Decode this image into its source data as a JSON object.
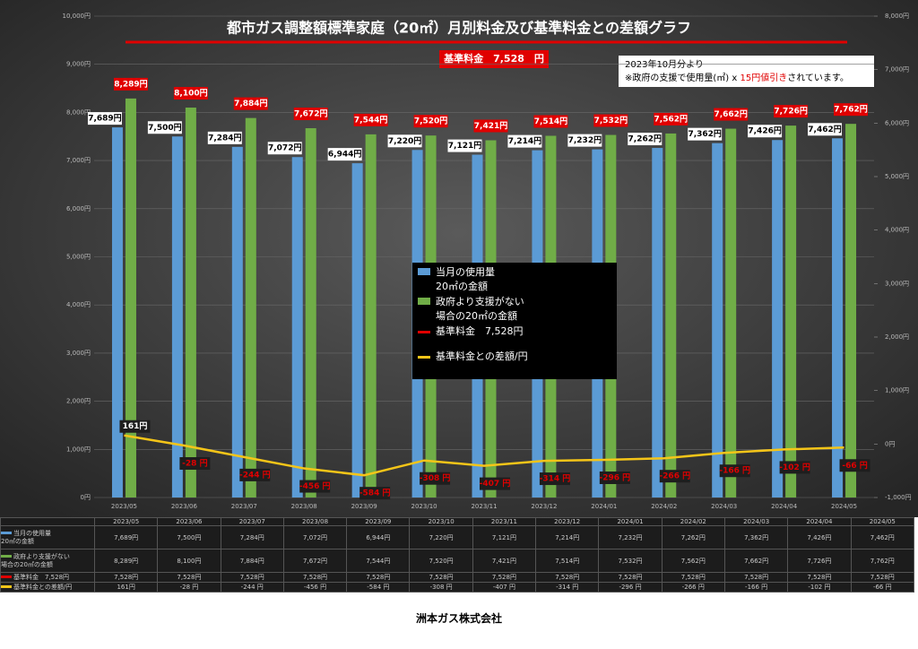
{
  "title": "都市ガス調整額標準家庭（20㎡）月別料金及び基準料金との差額グラフ",
  "badge": "基準料金　7,528　円",
  "note": {
    "line1": "2023年10月分より",
    "line2_a": "※政府の支援で使用量(㎡) x ",
    "line2_b": "15円値引き",
    "line2_c": "されています。"
  },
  "footer": "洲本ガス株式会社",
  "chart_data": {
    "type": "bar_line",
    "categories": [
      "2023/05",
      "2023/06",
      "2023/07",
      "2023/08",
      "2023/09",
      "2023/10",
      "2023/11",
      "2023/12",
      "2024/01",
      "2024/02",
      "2024/03",
      "2024/04",
      "2024/05"
    ],
    "ylim": [
      0,
      10000
    ],
    "yticks": [
      {
        "value": 0,
        "label": "0円"
      },
      {
        "value": 1000,
        "label": "1,000円"
      },
      {
        "value": 2000,
        "label": "2,000円"
      },
      {
        "value": 3000,
        "label": "3,000円"
      },
      {
        "value": 4000,
        "label": "4,000円"
      },
      {
        "value": 5000,
        "label": "5,000円"
      },
      {
        "value": 6000,
        "label": "6,000円"
      },
      {
        "value": 7000,
        "label": "7,000円"
      },
      {
        "value": 8000,
        "label": "8,000円"
      },
      {
        "value": 9000,
        "label": "9,000円"
      },
      {
        "value": 10000,
        "label": "10,000円"
      }
    ],
    "y2lim": [
      -1000,
      8000
    ],
    "y2ticks": [
      {
        "value": -1000,
        "label": "-1,000円"
      },
      {
        "value": 0,
        "label": "0円"
      },
      {
        "value": 1000,
        "label": "1,000円"
      },
      {
        "value": 2000,
        "label": "2,000円"
      },
      {
        "value": 3000,
        "label": "3,000円"
      },
      {
        "value": 4000,
        "label": "4,000円"
      },
      {
        "value": 5000,
        "label": "5,000円"
      },
      {
        "value": 6000,
        "label": "6,000円"
      },
      {
        "value": 7000,
        "label": "7,000円"
      },
      {
        "value": 8000,
        "label": "8,000円"
      }
    ],
    "series": [
      {
        "name": "当月の使用量\n20㎡の金額",
        "color": "#5b9bd5",
        "type": "bar",
        "values": [
          7689,
          7500,
          7284,
          7072,
          6944,
          7220,
          7121,
          7214,
          7232,
          7262,
          7362,
          7426,
          7462
        ],
        "value_labels": [
          "7,689円",
          "7,500円",
          "7,284円",
          "7,072円",
          "6,944円",
          "7,220円",
          "7,121円",
          "7,214円",
          "7,232円",
          "7,262円",
          "7,362円",
          "7,426円",
          "7,462円"
        ]
      },
      {
        "name": "政府より支援がない\n場合の20㎡の金額",
        "color": "#70ad47",
        "type": "bar",
        "values": [
          8289,
          8100,
          7884,
          7672,
          7544,
          7520,
          7421,
          7514,
          7532,
          7562,
          7662,
          7726,
          7762
        ],
        "value_labels": [
          "8,289円",
          "8,100円",
          "7,884円",
          "7,672円",
          "7,544円",
          "7,520円",
          "7,421円",
          "7,514円",
          "7,532円",
          "7,562円",
          "7,662円",
          "7,726円",
          "7,762円"
        ]
      },
      {
        "name": "基準料金　7,528円",
        "color": "#e00000",
        "type": "line",
        "visible": false,
        "values": [
          7528,
          7528,
          7528,
          7528,
          7528,
          7528,
          7528,
          7528,
          7528,
          7528,
          7528,
          7528,
          7528
        ],
        "value_labels": [
          "7,528円",
          "7,528円",
          "7,528円",
          "7,528円",
          "7,528円",
          "7,528円",
          "7,528円",
          "7,528円",
          "7,528円",
          "7,528円",
          "7,528円",
          "7,528円",
          "7,528円"
        ]
      },
      {
        "name": "基準料金との差額/円",
        "color": "#f5c518",
        "type": "line",
        "axis": "y2",
        "values": [
          161,
          -28,
          -244,
          -456,
          -584,
          -308,
          -407,
          -314,
          -296,
          -266,
          -166,
          -102,
          -66
        ],
        "value_labels": [
          "161円",
          "-28 円",
          "-244 円",
          "-456 円",
          "-584 円",
          "-308 円",
          "-407 円",
          "-314 円",
          "-296 円",
          "-266 円",
          "-166 円",
          "-102 円",
          "-66 円"
        ]
      }
    ]
  }
}
